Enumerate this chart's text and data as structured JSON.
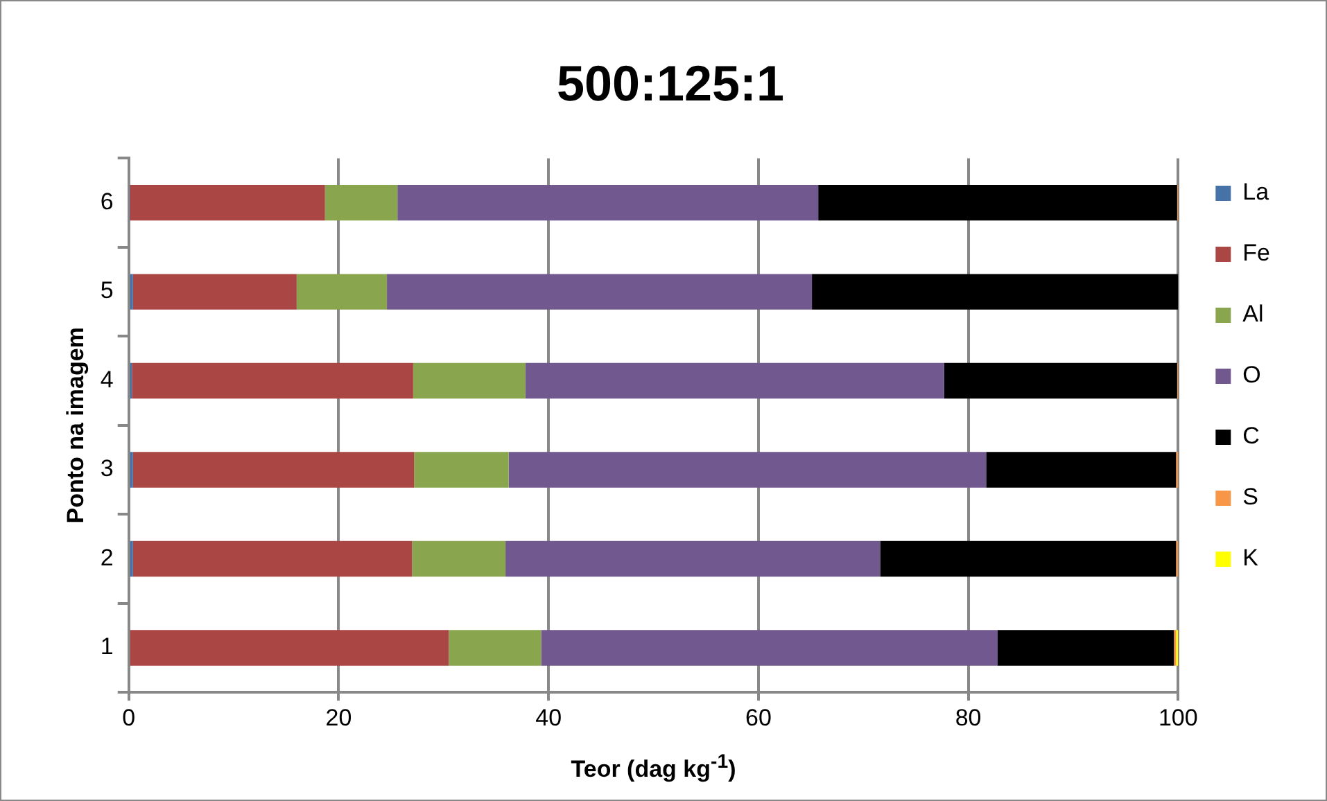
{
  "chart_data": {
    "type": "bar",
    "orientation": "horizontal",
    "stacked": true,
    "title": "500:125:1",
    "xlabel": "Teor (dag kg$^{-1}$)",
    "ylabel": "Ponto na imagem",
    "categories": [
      "6",
      "5",
      "4",
      "3",
      "2",
      "1"
    ],
    "series": [
      {
        "name": "La",
        "color": "#4572a7",
        "values": [
          0.1,
          0.4,
          0.3,
          0.4,
          0.4,
          0
        ]
      },
      {
        "name": "Fe",
        "color": "#aa4643",
        "values": [
          18.6,
          15.6,
          26.8,
          26.8,
          26.6,
          30.5
        ]
      },
      {
        "name": "Al",
        "color": "#89a54e",
        "values": [
          6.9,
          8.6,
          10.7,
          9.0,
          8.9,
          8.8
        ]
      },
      {
        "name": "O",
        "color": "#71588f",
        "values": [
          40.1,
          40.5,
          39.9,
          45.5,
          35.7,
          43.5
        ]
      },
      {
        "name": "C",
        "color": "#000000",
        "values": [
          34.2,
          34.9,
          22.2,
          18.1,
          28.2,
          16.8
        ]
      },
      {
        "name": "S",
        "color": "#f79646",
        "values": [
          0.1,
          0,
          0.1,
          0.2,
          0.2,
          0.2
        ]
      },
      {
        "name": "K",
        "color": "#ffff00",
        "values": [
          0,
          0,
          0,
          0,
          0,
          0.2
        ]
      }
    ],
    "xlim": [
      0,
      100
    ],
    "xticks": [
      0,
      20,
      40,
      60,
      80,
      100
    ],
    "grid": "x",
    "legend": "right"
  }
}
